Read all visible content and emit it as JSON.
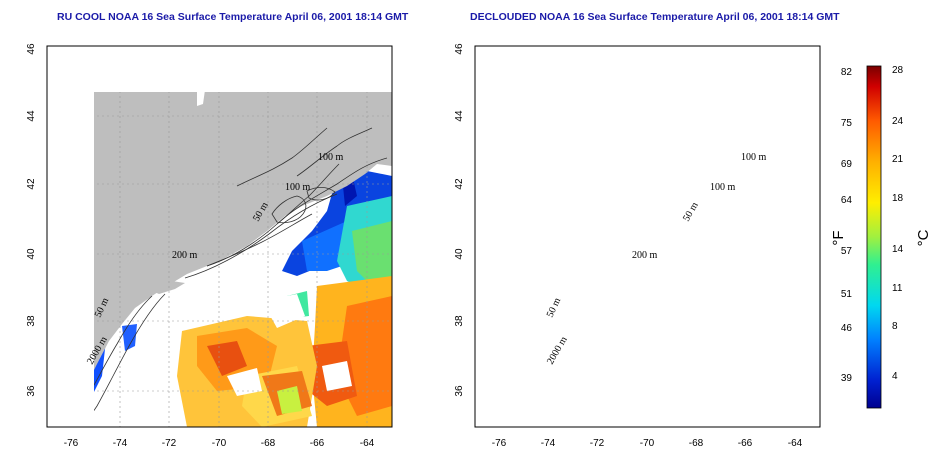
{
  "maps": [
    {
      "id": "left",
      "title": "RU COOL NOAA 16 Sea Surface Temperature April 06, 2001 18:14 GMT",
      "view": "cloud-included"
    },
    {
      "id": "right",
      "title": "DECLOUDED NOAA 16 Sea Surface Temperature April 06, 2001 18:14 GMT",
      "view": "declouded"
    }
  ],
  "axes": {
    "lon_ticks": [
      "-76",
      "-74",
      "-72",
      "-70",
      "-68",
      "-66",
      "-64"
    ],
    "lat_ticks": [
      "36",
      "38",
      "40",
      "42",
      "44",
      "46"
    ],
    "lon_range": [
      -77,
      -63
    ],
    "lat_range": [
      35,
      46
    ],
    "grid": "dashed"
  },
  "contour_labels": {
    "c100a": "100 m",
    "c100b": "100 m",
    "c50a": "50 m",
    "c200": "200 m",
    "c50b": "50 m",
    "c2000": "2000 m"
  },
  "colorbar": {
    "fahrenheit_ticks": [
      "82",
      "75",
      "69",
      "64",
      "57",
      "51",
      "46",
      "39"
    ],
    "celsius_ticks": [
      "28",
      "24",
      "21",
      "18",
      "14",
      "11",
      "8",
      "4"
    ],
    "fahrenheit_unit": "°F",
    "celsius_unit": "°C",
    "colors": [
      "#00008f",
      "#0030ff",
      "#00a0ff",
      "#00e8e8",
      "#40ff80",
      "#c0ff30",
      "#ffee00",
      "#ffa500",
      "#ff5000",
      "#d00000",
      "#7a0000"
    ]
  },
  "colors": {
    "land": "#bebebe",
    "title": "#1a1aa8",
    "ocean": "#ffffff"
  }
}
